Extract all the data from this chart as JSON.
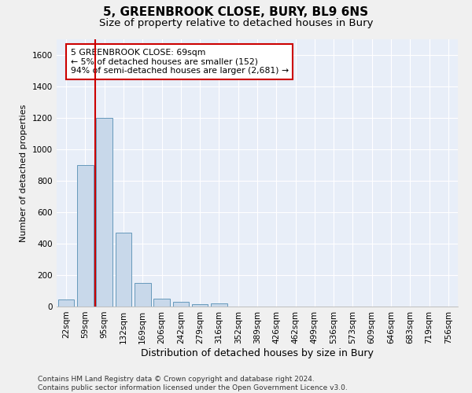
{
  "title": "5, GREENBROOK CLOSE, BURY, BL9 6NS",
  "subtitle": "Size of property relative to detached houses in Bury",
  "xlabel": "Distribution of detached houses by size in Bury",
  "ylabel": "Number of detached properties",
  "bar_color": "#c8d8ea",
  "bar_edge_color": "#6699bb",
  "background_color": "#e8eef8",
  "grid_color": "#ffffff",
  "categories": [
    "22sqm",
    "59sqm",
    "95sqm",
    "132sqm",
    "169sqm",
    "206sqm",
    "242sqm",
    "279sqm",
    "316sqm",
    "352sqm",
    "389sqm",
    "426sqm",
    "462sqm",
    "499sqm",
    "536sqm",
    "573sqm",
    "609sqm",
    "646sqm",
    "683sqm",
    "719sqm",
    "756sqm"
  ],
  "values": [
    45,
    900,
    1200,
    470,
    150,
    50,
    30,
    15,
    18,
    0,
    0,
    0,
    0,
    0,
    0,
    0,
    0,
    0,
    0,
    0,
    0
  ],
  "ylim": [
    0,
    1700
  ],
  "yticks": [
    0,
    200,
    400,
    600,
    800,
    1000,
    1200,
    1400,
    1600
  ],
  "vline_x": 1.5,
  "vline_color": "#cc0000",
  "annotation_text": "5 GREENBROOK CLOSE: 69sqm\n← 5% of detached houses are smaller (152)\n94% of semi-detached houses are larger (2,681) →",
  "annotation_box_color": "#ffffff",
  "annotation_box_edge": "#cc0000",
  "footer_text": "Contains HM Land Registry data © Crown copyright and database right 2024.\nContains public sector information licensed under the Open Government Licence v3.0.",
  "title_fontsize": 11,
  "subtitle_fontsize": 9.5,
  "xlabel_fontsize": 9,
  "ylabel_fontsize": 8,
  "tick_fontsize": 7.5,
  "footer_fontsize": 6.5
}
